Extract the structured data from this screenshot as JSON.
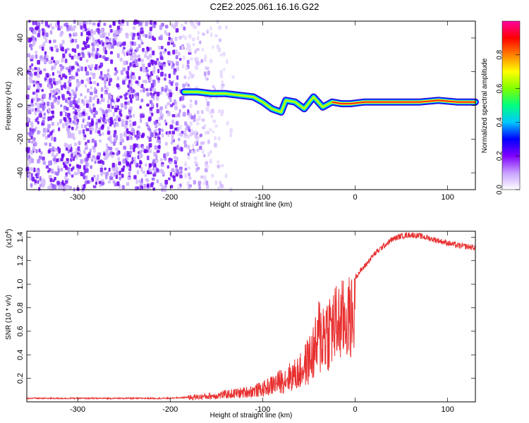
{
  "title": "C2E2.2025.061.16.16.G22",
  "chart_data": [
    {
      "type": "heatmap",
      "name": "spectrogram",
      "xlabel": "Height of straight line (km)",
      "ylabel": "Frequency (Hz)",
      "xlim": [
        -355,
        130
      ],
      "ylim": [
        -50,
        50
      ],
      "xticks": [
        -300,
        -200,
        -100,
        0,
        100
      ],
      "yticks": [
        -40,
        -20,
        0,
        20,
        40
      ],
      "colorbar": {
        "label": "Normalized spectral amplitude",
        "range": [
          0.0,
          1.0
        ],
        "ticks": [
          0.0,
          0.2,
          0.4,
          0.6,
          0.8
        ],
        "tick_labels": [
          "0.0",
          "0.2",
          "0.4",
          "0.6",
          "0.8"
        ],
        "colormap": [
          "#ffffff",
          "#c8a0ff",
          "#8000ff",
          "#0000ff",
          "#00c8ff",
          "#00ff80",
          "#80ff00",
          "#ffff00",
          "#ff8000",
          "#ff0000",
          "#ff00a0"
        ]
      },
      "ridge": {
        "x": [
          -185,
          -170,
          -155,
          -140,
          -125,
          -110,
          -100,
          -90,
          -80,
          -75,
          -65,
          -55,
          -45,
          -35,
          -25,
          -15,
          -5,
          10,
          30,
          50,
          70,
          90,
          110,
          130
        ],
        "y": [
          8,
          8,
          7,
          7,
          6,
          5,
          2,
          -2,
          -4,
          3,
          2,
          -2,
          5,
          -1,
          2,
          1,
          1,
          2,
          2,
          2,
          2,
          3,
          2,
          2
        ]
      }
    },
    {
      "type": "line",
      "name": "snr",
      "xlabel": "Height of straight line (km)",
      "ylabel": "SNR (10 * v/v)",
      "scale_label": "(x10",
      "scale_exp": "4",
      "scale_close": ")",
      "xlim": [
        -355,
        130
      ],
      "ylim": [
        0.0,
        1.45
      ],
      "xticks": [
        -300,
        -200,
        -100,
        0,
        100
      ],
      "yticks": [
        0.2,
        0.4,
        0.6,
        0.8,
        1.0,
        1.2,
        1.4
      ],
      "ytick_labels": [
        "0.2",
        "0.4",
        "0.6",
        "0.8",
        "1.0",
        "1.2",
        "1.4"
      ],
      "color": "#e83030",
      "envelope": {
        "x": [
          -355,
          -200,
          -180,
          -150,
          -120,
          -100,
          -90,
          -80,
          -70,
          -60,
          -50,
          -40,
          -30,
          -20,
          -15,
          -10,
          -5,
          0,
          10,
          20,
          30,
          40,
          50,
          60,
          70,
          80,
          90,
          100,
          110,
          120,
          130
        ],
        "y": [
          0.03,
          0.03,
          0.04,
          0.06,
          0.09,
          0.12,
          0.16,
          0.2,
          0.24,
          0.28,
          0.4,
          0.55,
          0.7,
          0.85,
          0.92,
          0.98,
          1.02,
          1.06,
          1.15,
          1.25,
          1.32,
          1.38,
          1.41,
          1.42,
          1.41,
          1.39,
          1.37,
          1.35,
          1.33,
          1.32,
          1.31
        ]
      }
    }
  ]
}
